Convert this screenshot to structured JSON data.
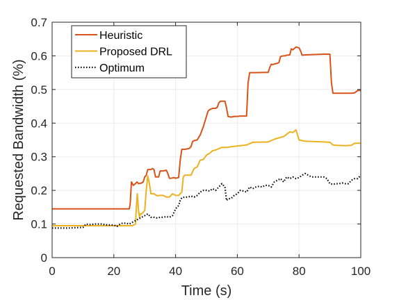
{
  "chart_data": {
    "type": "line",
    "title": "",
    "xlabel": "Time (s)",
    "ylabel": "Requested Bandwidth (%)",
    "xlim": [
      0,
      100
    ],
    "ylim": [
      0,
      0.7
    ],
    "x_ticks": [
      "0",
      "20",
      "40",
      "60",
      "80",
      "100"
    ],
    "y_ticks": [
      "0",
      "0.1",
      "0.2",
      "0.3",
      "0.4",
      "0.5",
      "0.6",
      "0.7"
    ],
    "grid": true,
    "legend_position": "top-left",
    "series": [
      {
        "name": "Heuristic",
        "color": "#D95319",
        "style": "solid",
        "x": [
          0,
          25,
          25.3,
          25.7,
          26.3,
          27,
          27.5,
          28,
          29,
          29.5,
          30,
          30.5,
          31,
          32,
          32.5,
          33,
          33.5,
          34.5,
          35,
          36,
          37,
          37.5,
          38,
          38.5,
          39.5,
          40,
          41,
          41.5,
          42,
          43,
          44.5,
          45,
          45.5,
          46,
          47,
          48,
          49,
          50,
          50.5,
          51,
          52,
          53,
          53.5,
          54,
          54.5,
          55,
          56,
          56.5,
          57,
          58,
          59,
          59.5,
          60,
          61,
          62,
          63,
          63.5,
          64,
          66,
          70,
          70.5,
          71,
          71.5,
          72,
          73,
          73.5,
          74,
          75,
          75.5,
          76,
          77,
          77.5,
          78,
          79,
          80,
          80.5,
          81,
          82,
          85,
          88,
          90,
          90.5,
          91,
          92,
          95,
          97,
          98,
          99,
          100
        ],
        "y": [
          0.145,
          0.145,
          0.16,
          0.225,
          0.215,
          0.22,
          0.225,
          0.22,
          0.222,
          0.225,
          0.24,
          0.245,
          0.262,
          0.262,
          0.265,
          0.262,
          0.24,
          0.24,
          0.258,
          0.258,
          0.26,
          0.25,
          0.236,
          0.236,
          0.238,
          0.236,
          0.238,
          0.29,
          0.322,
          0.322,
          0.325,
          0.33,
          0.345,
          0.348,
          0.35,
          0.365,
          0.39,
          0.42,
          0.435,
          0.44,
          0.444,
          0.444,
          0.447,
          0.46,
          0.465,
          0.465,
          0.465,
          0.445,
          0.42,
          0.418,
          0.42,
          0.42,
          0.42,
          0.421,
          0.421,
          0.421,
          0.52,
          0.55,
          0.55,
          0.551,
          0.565,
          0.575,
          0.574,
          0.576,
          0.578,
          0.58,
          0.598,
          0.6,
          0.6,
          0.602,
          0.603,
          0.621,
          0.618,
          0.626,
          0.624,
          0.615,
          0.602,
          0.603,
          0.604,
          0.605,
          0.605,
          0.52,
          0.489,
          0.489,
          0.489,
          0.489,
          0.49,
          0.497,
          0.497
        ]
      },
      {
        "name": "Proposed DRL",
        "color": "#EDB120",
        "style": "solid",
        "x": [
          0,
          10,
          20,
          25,
          26,
          27,
          27.3,
          27.6,
          28,
          28.3,
          28.6,
          29,
          30,
          30.5,
          31,
          31.5,
          32,
          33,
          34,
          35,
          36,
          37,
          38,
          39,
          40,
          41,
          42,
          42.5,
          43,
          45,
          46,
          47,
          48,
          49,
          50,
          51,
          52,
          53,
          54,
          55,
          56,
          57,
          58,
          60,
          63,
          65,
          70,
          72,
          73,
          75,
          77,
          78,
          79,
          80,
          82,
          85,
          88,
          90,
          91,
          92,
          95,
          97,
          98,
          100
        ],
        "y": [
          0.095,
          0.095,
          0.095,
          0.095,
          0.095,
          0.1,
          0.15,
          0.19,
          0.14,
          0.12,
          0.13,
          0.13,
          0.14,
          0.2,
          0.243,
          0.22,
          0.19,
          0.19,
          0.184,
          0.185,
          0.185,
          0.18,
          0.18,
          0.19,
          0.185,
          0.185,
          0.195,
          0.24,
          0.245,
          0.245,
          0.265,
          0.27,
          0.29,
          0.292,
          0.305,
          0.31,
          0.318,
          0.32,
          0.324,
          0.328,
          0.328,
          0.328,
          0.33,
          0.332,
          0.335,
          0.343,
          0.344,
          0.352,
          0.355,
          0.36,
          0.374,
          0.372,
          0.38,
          0.35,
          0.346,
          0.345,
          0.344,
          0.343,
          0.335,
          0.334,
          0.333,
          0.334,
          0.34,
          0.34
        ]
      },
      {
        "name": "Optimum",
        "color": "#000000",
        "style": "dotted",
        "x": [
          0,
          5,
          10,
          10.5,
          11,
          12,
          14,
          16,
          18,
          20,
          21,
          22,
          23,
          24,
          25,
          26,
          27,
          28,
          29,
          30,
          31,
          32,
          33,
          34,
          35,
          36,
          37,
          38,
          39,
          40,
          41,
          41.5,
          42,
          43,
          44,
          45,
          46,
          47,
          48,
          49,
          50,
          51,
          52,
          53,
          54,
          55,
          56,
          56.5,
          57,
          58,
          59,
          60,
          61,
          62,
          63,
          64,
          65,
          66,
          67,
          68,
          69,
          70,
          71,
          72,
          73,
          74,
          75,
          76,
          77,
          78,
          79,
          80,
          81,
          82,
          83,
          84,
          85,
          86,
          87,
          88,
          89,
          90,
          91,
          92,
          93,
          94,
          95,
          96,
          97,
          98,
          99,
          100
        ],
        "y": [
          0.088,
          0.088,
          0.09,
          0.095,
          0.1,
          0.098,
          0.1,
          0.1,
          0.097,
          0.097,
          0.093,
          0.1,
          0.103,
          0.102,
          0.1,
          0.105,
          0.11,
          0.115,
          0.12,
          0.125,
          0.13,
          0.12,
          0.12,
          0.118,
          0.12,
          0.12,
          0.122,
          0.12,
          0.125,
          0.145,
          0.155,
          0.17,
          0.178,
          0.18,
          0.18,
          0.183,
          0.18,
          0.185,
          0.195,
          0.2,
          0.2,
          0.198,
          0.205,
          0.2,
          0.21,
          0.22,
          0.21,
          0.17,
          0.175,
          0.176,
          0.185,
          0.19,
          0.2,
          0.198,
          0.195,
          0.21,
          0.205,
          0.21,
          0.212,
          0.21,
          0.215,
          0.215,
          0.21,
          0.225,
          0.23,
          0.235,
          0.225,
          0.24,
          0.235,
          0.24,
          0.235,
          0.238,
          0.245,
          0.25,
          0.245,
          0.24,
          0.24,
          0.24,
          0.24,
          0.24,
          0.235,
          0.22,
          0.218,
          0.22,
          0.22,
          0.222,
          0.22,
          0.22,
          0.23,
          0.235,
          0.235,
          0.245
        ]
      }
    ]
  }
}
